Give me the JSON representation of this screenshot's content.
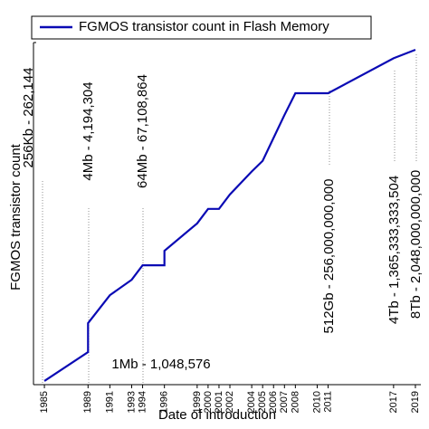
{
  "chart_data": {
    "type": "line",
    "x_label": "Date of introduction",
    "y_label": "FGMOS transistor count",
    "x": [
      1985,
      1989,
      1989,
      1991,
      1993,
      1994,
      1996,
      1996,
      1999,
      2000,
      2001,
      2002,
      2004,
      2005,
      2006,
      2007,
      2008,
      2011,
      2017,
      2019
    ],
    "series": [
      {
        "name": "FGMOS transistor count in Flash Memory",
        "color": "#0a0ab4",
        "values": [
          262144,
          1048576,
          4194304,
          16000000,
          33554432,
          67108864,
          67108864,
          134217728,
          500000000,
          1000000000,
          1000000000,
          2000000000,
          6000000000,
          10000000000,
          30000000000,
          90000000000,
          256000000000,
          256000000000,
          1365333333504,
          2048000000000
        ]
      }
    ],
    "xlim": [
      1984,
      2019.5
    ],
    "xticks": [
      1985,
      1989,
      1991,
      1993,
      1994,
      1996,
      1999,
      2000,
      2001,
      2002,
      2004,
      2005,
      2006,
      2007,
      2008,
      2010,
      2011,
      2017,
      2019
    ],
    "ylim": [
      220000,
      2900000000000
    ],
    "log_scale": true,
    "legend": "top",
    "annotations": [
      "256Kb - 262,144",
      "4Mb - 4,194,304",
      "64Mb - 67,108,864",
      "1Mb - 1,048,576",
      "512Gb - 256,000,000,000",
      "4Tb - 1,365,333,333,504",
      "8Tb - 2,048,000,000,000"
    ]
  }
}
